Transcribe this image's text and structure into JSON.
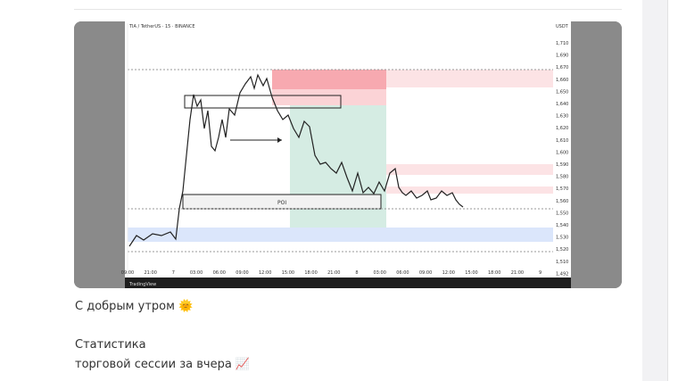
{
  "image": {
    "header": "TIA / TetherUS · 15 · BINANCE",
    "currency": "USDT",
    "poi": "POI",
    "brand": "TradingView",
    "y_labels": [
      "1,710",
      "1,690",
      "1,670",
      "1,660",
      "1,650",
      "1,640",
      "1,630",
      "1,620",
      "1,610",
      "1,600",
      "1,590",
      "1,580",
      "1,570",
      "1,560",
      "1,550",
      "1,540",
      "1,530",
      "1,520",
      "1,510",
      "1,492"
    ],
    "x_labels": [
      "09:00",
      "21:00",
      "7",
      "03:00",
      "06:00",
      "09:00",
      "12:00",
      "15:00",
      "18:00",
      "21:00",
      "8",
      "03:00",
      "06:00",
      "09:00",
      "12:00",
      "15:00",
      "18:00",
      "21:00",
      "9"
    ]
  },
  "message": {
    "greeting": "С добрым утром 🌞",
    "lines": [
      "Статистика",
      "торговой сессии за вчера 📈"
    ]
  }
}
